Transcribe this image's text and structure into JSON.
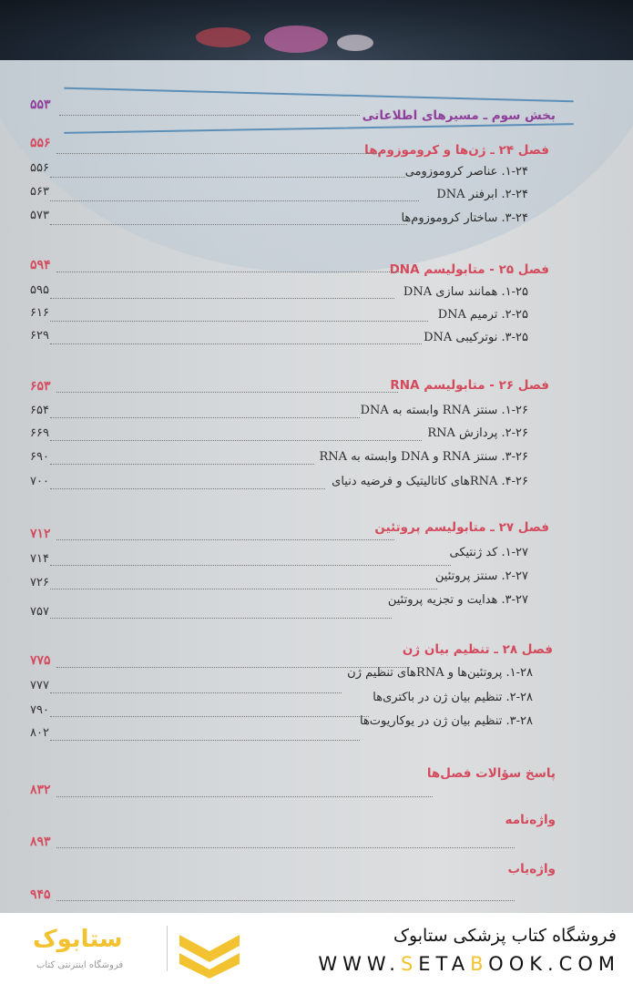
{
  "toc": {
    "part": {
      "title": "بخش سوم ـ مسیرهای اطلاعاتی",
      "page": "۵۵۳"
    },
    "chapters": [
      {
        "title": "فصل ۲۴ ـ ژن‌ها و کروموزوم‌ها",
        "page": "۵۵۶",
        "sections": [
          {
            "title": "۱-۲۴. عناصر کروموزومی",
            "page": "۵۵۶"
          },
          {
            "title": "۲-۲۴. ابرفنر DNA",
            "page": "۵۶۳"
          },
          {
            "title": "۳-۲۴. ساختار کروموزوم‌ها",
            "page": "۵۷۳"
          }
        ]
      },
      {
        "title": "فصل ۲۵ - متابولیسم DNA",
        "page": "۵۹۴",
        "sections": [
          {
            "title": "۱-۲۵. همانند سازی DNA",
            "page": "۵۹۵"
          },
          {
            "title": "۲-۲۵. ترمیم DNA",
            "page": "۶۱۶"
          },
          {
            "title": "۳-۲۵. نوترکیبی DNA",
            "page": "۶۲۹"
          }
        ]
      },
      {
        "title": "فصل ۲۶ - متابولیسم RNA",
        "page": "۶۵۳",
        "sections": [
          {
            "title": "۱-۲۶. سنتز RNA وابسته به DNA",
            "page": "۶۵۴"
          },
          {
            "title": "۲-۲۶. پردازش RNA",
            "page": "۶۶۹"
          },
          {
            "title": "۳-۲۶. سنتز RNA و DNA وابسته به RNA",
            "page": "۶۹۰"
          },
          {
            "title": "۴-۲۶. RNAهای کاتالیتیک و فرضیه دنیای",
            "page": "۷۰۰"
          }
        ]
      },
      {
        "title": "فصل ۲۷ ـ متابولیسم پروتئین",
        "page": "۷۱۲",
        "sections": [
          {
            "title": "۱-۲۷. کد ژنتیکی",
            "page": "۷۱۴"
          },
          {
            "title": "۲-۲۷. سنتز پروتئین",
            "page": "۷۲۶"
          },
          {
            "title": "۳-۲۷. هدایت و تجزیه پروتئین",
            "page": "۷۵۷"
          }
        ]
      },
      {
        "title": "فصل ۲۸ ـ تنظیم بیان ژن",
        "page": "۷۷۵",
        "sections": [
          {
            "title": "۱-۲۸. پروتئین‌ها و RNAهای تنظیم ژن",
            "page": "۷۷۷"
          },
          {
            "title": "۲-۲۸. تنظیم بیان ژن در باکتری‌ها",
            "page": "۷۹۰"
          },
          {
            "title": "۳-۲۸. تنظیم بیان ژن در یوکاریوت‌ها",
            "page": "۸۰۲"
          }
        ]
      }
    ],
    "back_matter": [
      {
        "title": "پاسخ سؤالات فصل‌ها",
        "page": "۸۳۲"
      },
      {
        "title": "واژه‌نامه",
        "page": "۸۹۳"
      },
      {
        "title": "واژه‌یاب",
        "page": "۹۴۵"
      }
    ]
  },
  "footer": {
    "store_name": "فروشگاه کتاب پزشکی ستابوک",
    "url_parts": [
      "WWW.",
      "S",
      "ETA",
      "B",
      "OOK.COM"
    ],
    "logo_text": "ستابوک",
    "logo_subtitle": "فروشگاه اینترنتی کتاب",
    "accent_color": "#f2c230",
    "heading_color": "#d54b5e"
  }
}
